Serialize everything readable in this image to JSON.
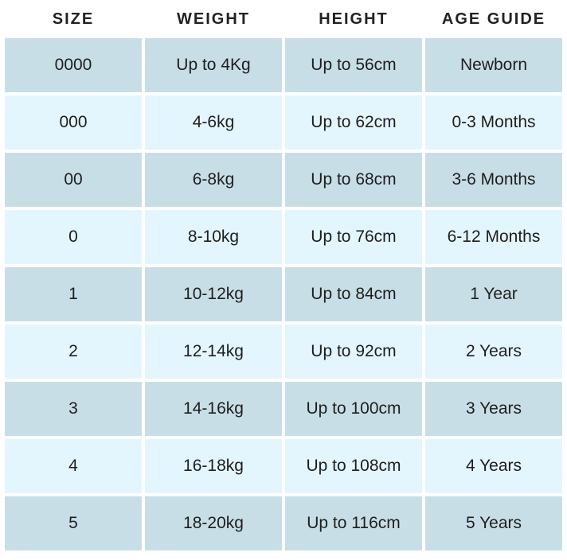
{
  "headers": [
    "SIZE",
    "WEIGHT",
    "HEIGHT",
    "AGE GUIDE"
  ],
  "rows": [
    [
      "0000",
      "Up to 4Kg",
      "Up to 56cm",
      "Newborn"
    ],
    [
      "000",
      "4-6kg",
      "Up to 62cm",
      "0-3 Months"
    ],
    [
      "00",
      "6-8kg",
      "Up to 68cm",
      "3-6 Months"
    ],
    [
      "0",
      "8-10kg",
      "Up to 76cm",
      "6-12 Months"
    ],
    [
      "1",
      "10-12kg",
      "Up to 84cm",
      "1 Year"
    ],
    [
      "2",
      "12-14kg",
      "Up to 92cm",
      "2 Years"
    ],
    [
      "3",
      "14-16kg",
      "Up to 100cm",
      "3 Years"
    ],
    [
      "4",
      "16-18kg",
      "Up to 108cm",
      "4 Years"
    ],
    [
      "5",
      "18-20kg",
      "Up to 116cm",
      "5 Years"
    ]
  ],
  "colors": {
    "row_dark": "#c8dee6",
    "row_light": "#e4f6fd"
  }
}
